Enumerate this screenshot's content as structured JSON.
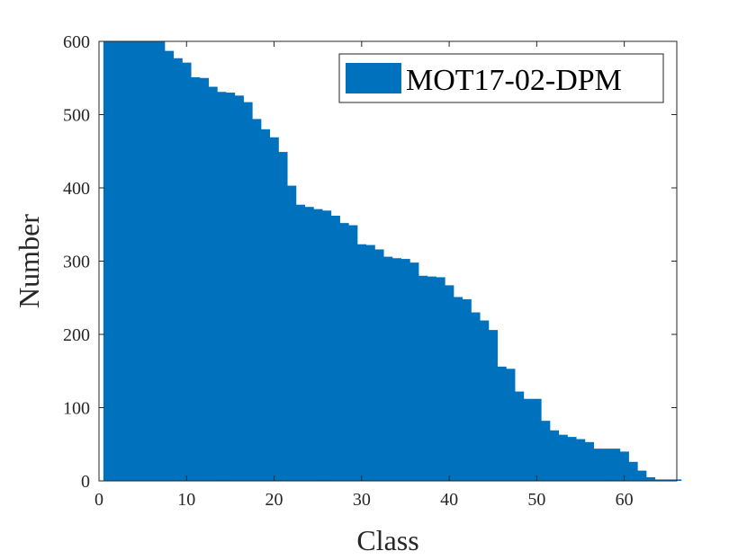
{
  "chart_data": {
    "type": "bar",
    "xlabel": "Class",
    "ylabel": "Number",
    "xlim": [
      0,
      66
    ],
    "ylim": [
      0,
      600
    ],
    "xticks": [
      0,
      10,
      20,
      30,
      40,
      50,
      60
    ],
    "yticks": [
      0,
      100,
      200,
      300,
      400,
      500,
      600
    ],
    "grid": false,
    "legend_position": "top-right",
    "series": [
      {
        "name": "MOT17-02-DPM",
        "color": "#0072BD",
        "x": [
          1,
          2,
          3,
          4,
          5,
          6,
          7,
          8,
          9,
          10,
          11,
          12,
          13,
          14,
          15,
          16,
          17,
          18,
          19,
          20,
          21,
          22,
          23,
          24,
          25,
          26,
          27,
          28,
          29,
          30,
          31,
          32,
          33,
          34,
          35,
          36,
          37,
          38,
          39,
          40,
          41,
          42,
          43,
          44,
          45,
          46,
          47,
          48,
          49,
          50,
          51,
          52,
          53,
          54,
          55,
          56,
          57,
          58,
          59,
          60,
          61,
          62,
          63,
          64,
          65,
          66
        ],
        "values": [
          600,
          600,
          600,
          600,
          600,
          600,
          600,
          587,
          577,
          571,
          551,
          550,
          538,
          531,
          530,
          526,
          517,
          494,
          480,
          469,
          449,
          403,
          377,
          374,
          371,
          369,
          362,
          352,
          349,
          323,
          322,
          316,
          306,
          304,
          303,
          298,
          280,
          279,
          278,
          267,
          251,
          248,
          230,
          219,
          206,
          156,
          153,
          122,
          112,
          112,
          82,
          69,
          63,
          60,
          57,
          53,
          44,
          44,
          44,
          40,
          26,
          14,
          5,
          2,
          2,
          2
        ]
      }
    ]
  }
}
